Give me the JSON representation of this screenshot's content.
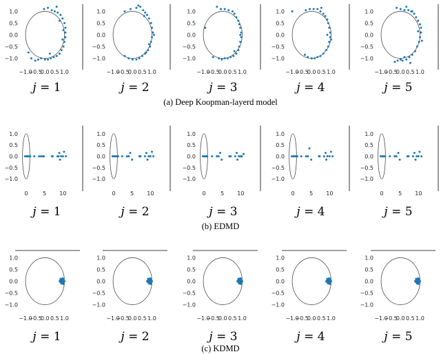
{
  "colors": {
    "point": "#1f77b4",
    "circle": "#333333",
    "axis": "#000000"
  },
  "rows": [
    {
      "caption": "(a)  Deep Koopman-layerd model",
      "j_var": "j",
      "j_eq": "=",
      "j_values": [
        "1",
        "2",
        "3",
        "4",
        "5"
      ],
      "chart_data": {
        "type": "scatter",
        "xlim": [
          -1.25,
          1.3
        ],
        "ylim": [
          -1.25,
          1.25
        ],
        "xticks": [
          "−1.0",
          "−0.5",
          "0.0",
          "0.5",
          "1.0"
        ],
        "xtick_values": [
          -1.0,
          -0.5,
          0.0,
          0.5,
          1.0
        ],
        "yticks": [
          "1.0",
          "0.5",
          "0.0",
          "−0.5",
          "−1.0"
        ],
        "ytick_values": [
          1.0,
          0.5,
          0.0,
          -0.5,
          -1.0
        ],
        "unit_circle": true,
        "panels": [
          {
            "x": [
              -0.05,
              0.15,
              0.35,
              0.5,
              0.65,
              0.8,
              0.9,
              1.0,
              1.05,
              1.05,
              1.05,
              1.0,
              0.95,
              0.85,
              0.75,
              0.6,
              0.45,
              0.3,
              0.15,
              0.0,
              -0.2,
              -0.35,
              -0.5,
              -0.7,
              -0.85,
              0.6,
              0.75,
              0.9,
              0.25,
              0.95
            ],
            "y": [
              1.1,
              1.15,
              1.05,
              1.0,
              0.95,
              0.85,
              0.7,
              0.5,
              0.3,
              0.1,
              -0.1,
              -0.3,
              -0.5,
              -0.65,
              -0.8,
              -0.9,
              -0.95,
              -1.0,
              -1.05,
              -1.05,
              -1.0,
              -1.05,
              -1.1,
              -1.0,
              -0.75,
              1.2,
              0.6,
              -0.2,
              -0.8,
              0.2
            ]
          },
          {
            "x": [
              -0.4,
              -0.1,
              0.2,
              0.4,
              0.55,
              0.65,
              0.75,
              0.85,
              0.95,
              1.0,
              1.05,
              1.0,
              0.95,
              0.9,
              0.8,
              0.65,
              0.5,
              0.35,
              0.2,
              0.0,
              -0.2,
              -0.4,
              0.3,
              0.6,
              0.85,
              1.1,
              0.7
            ],
            "y": [
              1.0,
              1.1,
              1.15,
              1.2,
              1.05,
              0.95,
              0.85,
              0.7,
              0.5,
              0.3,
              0.1,
              -0.1,
              -0.3,
              -0.5,
              -0.65,
              -0.8,
              -0.9,
              -1.0,
              -1.05,
              -1.05,
              -1.0,
              -0.9,
              1.25,
              0.8,
              -0.4,
              0.0,
              -0.75
            ]
          },
          {
            "x": [
              -0.3,
              -0.1,
              0.1,
              0.3,
              0.5,
              0.6,
              0.7,
              0.8,
              0.85,
              0.9,
              0.95,
              0.95,
              0.9,
              0.85,
              0.8,
              0.7,
              0.55,
              0.4,
              0.25,
              0.1,
              -0.05,
              -0.2,
              -0.5,
              -0.9,
              0.6,
              0.9
            ],
            "y": [
              1.2,
              1.1,
              1.1,
              1.05,
              1.0,
              0.9,
              0.75,
              0.6,
              0.45,
              0.3,
              0.1,
              -0.1,
              -0.3,
              -0.5,
              -0.65,
              -0.8,
              -0.9,
              -0.95,
              -1.0,
              -1.0,
              -1.05,
              -1.0,
              -0.95,
              0.3,
              -0.7,
              0.0
            ]
          },
          {
            "x": [
              -1.0,
              -0.3,
              -0.1,
              0.1,
              0.3,
              0.45,
              0.6,
              0.7,
              0.8,
              0.85,
              0.9,
              0.95,
              0.95,
              0.9,
              0.85,
              0.75,
              0.6,
              0.45,
              0.3,
              0.15,
              0.0,
              -0.2,
              -0.35,
              0.5,
              0.8,
              1.0
            ],
            "y": [
              1.0,
              1.05,
              1.1,
              1.1,
              1.1,
              1.0,
              0.9,
              0.8,
              0.65,
              0.5,
              0.3,
              0.1,
              -0.1,
              -0.3,
              -0.5,
              -0.65,
              -0.8,
              -0.9,
              -0.95,
              -1.0,
              -1.0,
              -0.95,
              -0.85,
              1.15,
              0.0,
              -0.2
            ]
          },
          {
            "x": [
              -0.2,
              0.0,
              0.2,
              0.4,
              0.55,
              0.7,
              0.8,
              0.9,
              1.0,
              1.05,
              1.05,
              1.0,
              0.95,
              0.85,
              0.75,
              0.6,
              0.45,
              0.3,
              0.1,
              0.0,
              -0.15,
              -0.3,
              0.3,
              0.6,
              0.9,
              1.1,
              0.5,
              0.2
            ],
            "y": [
              1.15,
              1.1,
              1.05,
              1.05,
              1.0,
              0.9,
              0.75,
              0.6,
              0.45,
              0.3,
              0.1,
              -0.1,
              -0.3,
              -0.5,
              -0.7,
              -0.85,
              -0.95,
              -1.05,
              -1.1,
              -1.05,
              -1.1,
              -1.15,
              1.2,
              1.0,
              0.15,
              -0.25,
              -1.2,
              -0.95
            ]
          }
        ]
      }
    },
    {
      "caption": "(b)  EDMD",
      "j_var": "j",
      "j_eq": "=",
      "j_values": [
        "1",
        "2",
        "3",
        "4",
        "5"
      ],
      "chart_data": {
        "type": "scatter",
        "xlim": [
          -1.5,
          12
        ],
        "ylim": [
          -1.3,
          1.3
        ],
        "xticks": [
          "0",
          "5",
          "10"
        ],
        "xtick_values": [
          0,
          5,
          10
        ],
        "yticks": [
          "1.0",
          "0.5",
          "0.0",
          "−0.5",
          "−1.0"
        ],
        "ytick_values": [
          1.0,
          0.5,
          0.0,
          -0.5,
          -1.0
        ],
        "unit_circle": true,
        "panels": [
          {
            "x": [
              -0.3,
              0.1,
              0.3,
              0.5,
              0.9,
              1.1,
              2.2,
              3.5,
              4.0,
              4.5,
              4.8,
              7.0,
              7.2,
              8.5,
              8.8,
              9.0,
              9.2,
              9.5,
              10.0,
              10.3,
              10.8
            ],
            "y": [
              0,
              0,
              0,
              0,
              0,
              0,
              0,
              0,
              0,
              0,
              0,
              0,
              0,
              0,
              0,
              0.15,
              -0.15,
              0,
              0,
              0.2,
              0
            ]
          },
          {
            "x": [
              -0.3,
              0.1,
              0.3,
              0.6,
              0.9,
              1.2,
              2.3,
              3.6,
              4.1,
              4.5,
              5.0,
              7.0,
              7.3,
              8.5,
              8.9,
              9.2,
              9.5,
              10.0,
              10.4,
              10.8
            ],
            "y": [
              0,
              0,
              0,
              0,
              0,
              0,
              0,
              0,
              0,
              0.15,
              -0.15,
              0,
              0,
              0,
              0.15,
              -0.15,
              0,
              0,
              0.2,
              0
            ]
          },
          {
            "x": [
              -0.3,
              0.1,
              0.3,
              0.6,
              0.9,
              2.2,
              3.5,
              4.0,
              4.4,
              4.8,
              6.9,
              7.3,
              8.5,
              8.9,
              9.1,
              9.5,
              10.0,
              10.3,
              10.8
            ],
            "y": [
              0,
              0,
              0,
              0,
              0,
              0,
              0,
              0,
              0.15,
              -0.15,
              0,
              0,
              0,
              0.15,
              -0.15,
              0,
              0,
              0,
              0.1
            ]
          },
          {
            "x": [
              -0.3,
              0.1,
              0.3,
              0.6,
              0.9,
              1.2,
              2.3,
              3.6,
              4.1,
              4.5,
              5.0,
              7.1,
              7.3,
              8.5,
              8.9,
              9.1,
              9.4,
              10.0,
              10.4,
              10.8
            ],
            "y": [
              0,
              0,
              0,
              0,
              0,
              0,
              0,
              0,
              0,
              0.35,
              -0.15,
              0,
              0,
              0,
              0.15,
              -0.15,
              0,
              0,
              0.2,
              0
            ]
          },
          {
            "x": [
              -0.3,
              0.1,
              0.3,
              0.6,
              0.9,
              2.2,
              3.5,
              4.0,
              4.5,
              4.9,
              7.0,
              7.3,
              8.5,
              8.9,
              9.2,
              9.5,
              10.0,
              10.3,
              10.8
            ],
            "y": [
              0,
              0,
              0,
              0,
              0,
              0,
              0,
              0,
              0.15,
              -0.15,
              0,
              0,
              0,
              0.15,
              -0.15,
              0,
              0,
              0.2,
              0
            ]
          }
        ]
      }
    },
    {
      "caption": "(c)  KDMD",
      "j_var": "j",
      "j_eq": "=",
      "j_values": [
        "1",
        "2",
        "3",
        "4",
        "5"
      ],
      "chart_data": {
        "type": "scatter",
        "xlim": [
          -1.25,
          1.3
        ],
        "ylim": [
          -1.25,
          1.25
        ],
        "xticks": [
          "−1.0",
          "−0.5",
          "0.0",
          "0.5",
          "1.0"
        ],
        "xtick_values": [
          -1.0,
          -0.5,
          0.0,
          0.5,
          1.0
        ],
        "yticks": [
          "1.0",
          "0.5",
          "0.0",
          "−0.5",
          "−1.0"
        ],
        "ytick_values": [
          1.0,
          0.5,
          0.0,
          -0.5,
          -1.0
        ],
        "unit_circle": true,
        "cluster": {
          "x_min": 0.72,
          "x_max": 1.0,
          "y_half_height": 0.16
        },
        "panels": [
          {
            "x": [
              0.75,
              0.8,
              0.85,
              0.9,
              0.95,
              1.0
            ],
            "y": [
              0,
              0.1,
              -0.1,
              0.12,
              -0.12,
              0
            ]
          },
          {
            "x": [
              0.75,
              0.8,
              0.85,
              0.9,
              0.95,
              1.0
            ],
            "y": [
              0,
              0.1,
              -0.1,
              0.12,
              -0.12,
              0
            ]
          },
          {
            "x": [
              0.75,
              0.8,
              0.85,
              0.9,
              0.95,
              1.0
            ],
            "y": [
              0,
              0.1,
              -0.1,
              0.12,
              -0.12,
              0
            ]
          },
          {
            "x": [
              0.75,
              0.8,
              0.85,
              0.9,
              0.95,
              1.0
            ],
            "y": [
              0,
              0.1,
              -0.1,
              0.12,
              -0.12,
              0
            ]
          },
          {
            "x": [
              0.75,
              0.8,
              0.85,
              0.9,
              0.95,
              1.0
            ],
            "y": [
              0,
              0.1,
              -0.1,
              0.12,
              -0.12,
              0
            ]
          }
        ]
      }
    }
  ]
}
